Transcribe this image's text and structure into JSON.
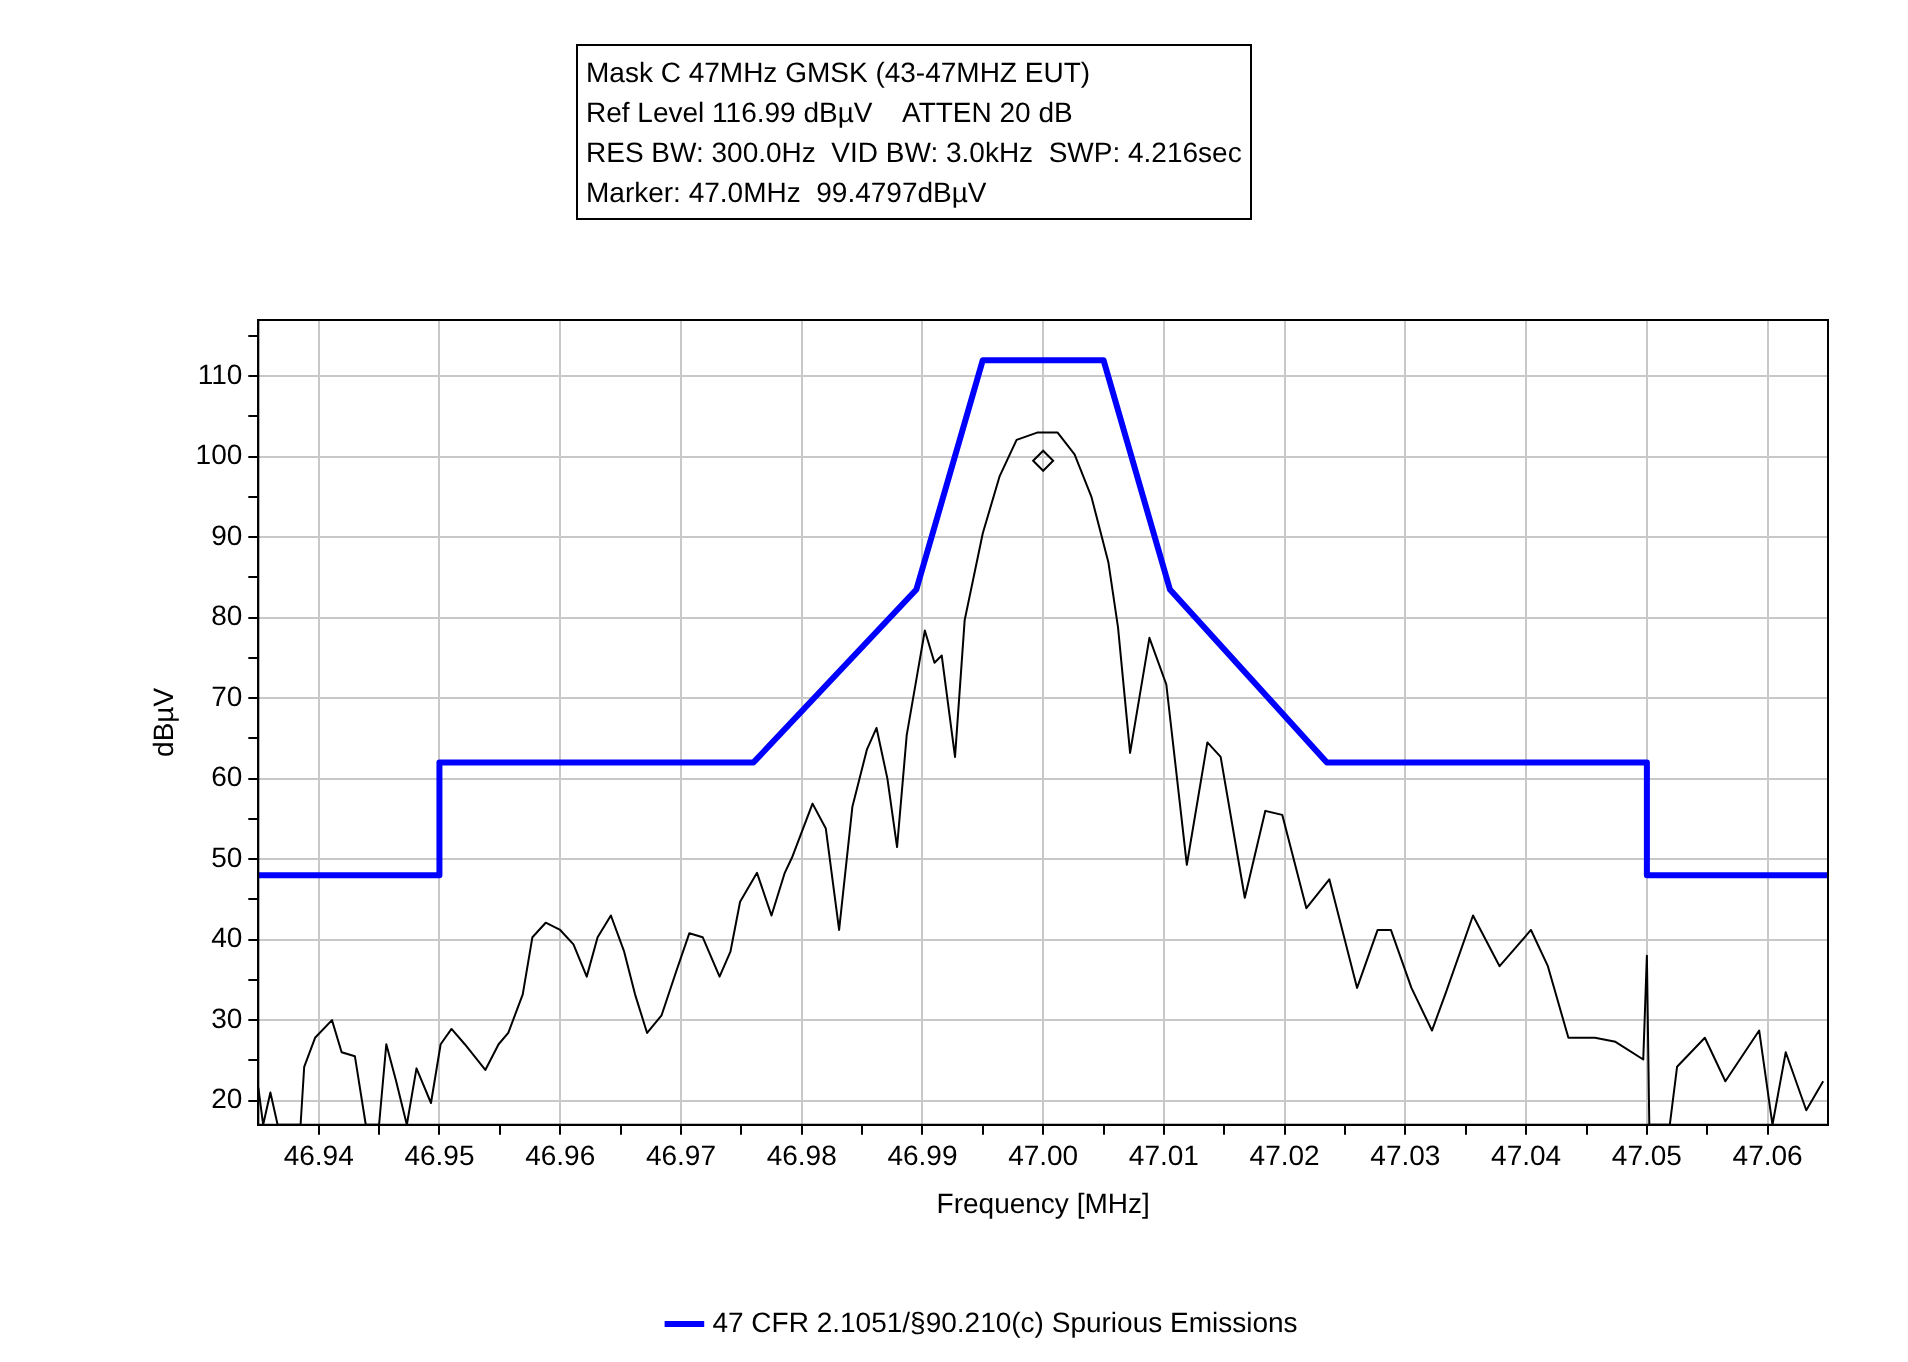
{
  "chart_data": {
    "type": "line",
    "annotations": [
      "Mask C 47MHz GMSK (43-47MHZ EUT)",
      "Ref Level 116.99 dBµV    ATTEN 20 dB",
      "RES BW: 300.0Hz  VID BW: 3.0kHz  SWP: 4.216sec",
      "Marker: 47.0MHz  99.4797dBµV"
    ],
    "xlabel": "Frequency [MHz]",
    "ylabel": "dBµV",
    "xlim": [
      46.935,
      47.065
    ],
    "ylim": [
      16.99,
      116.99
    ],
    "xticks": [
      46.94,
      {
        "value": 46.945,
        "label": null
      },
      46.95,
      {
        "value": 46.955,
        "label": null
      },
      46.96,
      {
        "value": 46.965,
        "label": null
      },
      46.97,
      {
        "value": 46.975,
        "label": null
      },
      46.98,
      {
        "value": 46.985,
        "label": null
      },
      46.99,
      {
        "value": 46.995,
        "label": null
      },
      {
        "value": 47,
        "label": "47.00"
      },
      {
        "value": 47.005,
        "label": null
      },
      47.01,
      {
        "value": 47.015,
        "label": null
      },
      47.02,
      {
        "value": 47.025,
        "label": null
      },
      47.03,
      {
        "value": 47.035,
        "label": null
      },
      47.04,
      {
        "value": 47.045,
        "label": null
      },
      47.05,
      {
        "value": 47.055,
        "label": null
      },
      47.06
    ],
    "yticks": [
      20,
      {
        "value": 25,
        "label": null
      },
      30,
      {
        "value": 35,
        "label": null
      },
      40,
      {
        "value": 45,
        "label": null
      },
      50,
      {
        "value": 55,
        "label": null
      },
      60,
      {
        "value": 65,
        "label": null
      },
      70,
      {
        "value": 75,
        "label": null
      },
      80,
      {
        "value": 85,
        "label": null
      },
      90,
      {
        "value": 95,
        "label": null
      },
      100,
      {
        "value": 105,
        "label": null
      },
      110,
      {
        "value": 115,
        "label": null
      }
    ],
    "grid": true,
    "legend": "bottom",
    "marker": "none",
    "line_style": "solid",
    "series": [
      {
        "name": "47 CFR 2.1051/§90.210(c) Spurious Emissions",
        "color": "#0000ff",
        "x": [
          46.935,
          46.95,
          46.95,
          46.976,
          46.9895,
          46.995,
          47.005,
          47.0105,
          47.0235,
          47.05,
          47.05,
          47.065
        ],
        "values": [
          48,
          48,
          62,
          62,
          83.5,
          112,
          112,
          83.5,
          62,
          62,
          48,
          48
        ]
      },
      {
        "color": "#000000",
        "x": [
          46.935,
          46.9354,
          46.936,
          46.9366,
          46.9385,
          46.9388,
          46.9397,
          46.9411,
          46.9419,
          46.943,
          46.9439,
          46.945,
          46.9456,
          46.9464,
          46.9473,
          46.9481,
          46.9493,
          46.9501,
          46.951,
          46.9521,
          46.9538,
          46.9549,
          46.9557,
          46.9569,
          46.9577,
          46.9588,
          46.96,
          46.9611,
          46.9622,
          46.9631,
          46.9642,
          46.9653,
          46.9662,
          46.9672,
          46.9684,
          46.9696,
          46.9707,
          46.9718,
          46.9732,
          46.9741,
          46.9749,
          46.9763,
          46.9775,
          46.9786,
          46.9792,
          46.9809,
          46.982,
          46.9831,
          46.9842,
          46.9854,
          46.9862,
          46.9871,
          46.9879,
          46.9887,
          46.9902,
          46.991,
          46.9916,
          46.9927,
          46.9935,
          46.995,
          46.9964,
          46.9978,
          46.9995,
          47.0012,
          47.0026,
          47.004,
          47.0054,
          47.0062,
          47.0072,
          47.0088,
          47.0102,
          47.0119,
          47.0136,
          47.0147,
          47.0167,
          47.0184,
          47.0198,
          47.0218,
          47.0237,
          47.026,
          47.0277,
          47.0288,
          47.0305,
          47.0322,
          47.0333,
          47.0356,
          47.0378,
          47.0404,
          47.0418,
          47.0435,
          47.0457,
          47.0474,
          47.0497,
          47.05,
          47.0502,
          47.0519,
          47.0525,
          47.0548,
          47.0565,
          47.0581,
          47.0593,
          47.0604,
          47.0615,
          47.0632,
          47.0646
        ],
        "values": [
          21.6,
          17,
          21,
          17,
          17,
          24.2,
          27.8,
          30,
          26,
          25.5,
          17,
          17,
          27,
          22.5,
          17,
          24,
          19.7,
          27,
          28.9,
          27,
          23.8,
          27,
          28.4,
          33.2,
          40.3,
          42.1,
          41.2,
          39.4,
          35.4,
          40.3,
          43,
          38.5,
          33.2,
          28.4,
          30.6,
          36,
          40.8,
          40.3,
          35.4,
          38.5,
          44.7,
          48.3,
          43,
          48.3,
          50.2,
          56.9,
          53.8,
          41.2,
          56.5,
          63.6,
          66.3,
          60,
          51.5,
          65.4,
          78.4,
          74.4,
          75.3,
          62.7,
          79.7,
          90.5,
          97.6,
          102.1,
          103,
          103,
          100.3,
          95,
          86.9,
          78.8,
          63.2,
          77.5,
          71.7,
          49.3,
          64.5,
          62.7,
          45.2,
          56,
          55.5,
          43.9,
          47.5,
          34,
          41.2,
          41.2,
          34,
          28.7,
          33.2,
          43,
          36.7,
          41.2,
          36.7,
          27.8,
          27.8,
          27.3,
          25.1,
          38,
          17,
          17,
          24.2,
          27.8,
          22.4,
          26,
          28.7,
          17,
          26,
          18.8,
          22.4
        ]
      },
      {
        "type": "scatter",
        "marker": "diamond",
        "color": "#000000",
        "x": [
          47.0
        ],
        "values": [
          99.5
        ]
      }
    ]
  }
}
